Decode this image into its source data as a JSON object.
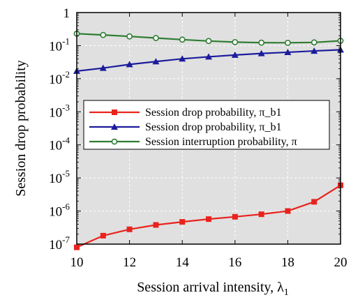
{
  "chart_data": {
    "type": "line",
    "xlabel": "Session arrival intensity, λ₁",
    "ylabel": "Session drop probability",
    "xlim": [
      10,
      20
    ],
    "ylim": [
      1e-07,
      1
    ],
    "yscale": "log",
    "grid": true,
    "legend_position": "center",
    "x_ticks": [
      10,
      12,
      14,
      16,
      18,
      20
    ],
    "y_ticks": [
      "10-7",
      "10-6",
      "10-5",
      "10-4",
      "10-3",
      "10-2",
      "10-1",
      "1"
    ],
    "x": [
      10,
      11,
      12,
      13,
      14,
      15,
      16,
      17,
      18,
      19,
      20
    ],
    "series": [
      {
        "name": "Session drop probability, π_b1",
        "color": "#e8231d",
        "marker": "square",
        "values": [
          8e-08,
          1.8e-07,
          2.8e-07,
          3.8e-07,
          4.7e-07,
          5.7e-07,
          6.7e-07,
          8e-07,
          1e-06,
          1.9e-06,
          6e-06
        ]
      },
      {
        "name": "Session drop probability, π_b1",
        "color": "#1c1c9c",
        "marker": "triangle",
        "values": [
          0.017,
          0.021,
          0.027,
          0.033,
          0.04,
          0.046,
          0.052,
          0.058,
          0.063,
          0.069,
          0.075
        ]
      },
      {
        "name": "Session interruption probability, π",
        "color": "#2e7d32",
        "marker": "circle-open",
        "values": [
          0.23,
          0.21,
          0.19,
          0.17,
          0.152,
          0.138,
          0.128,
          0.123,
          0.122,
          0.125,
          0.14
        ]
      }
    ]
  }
}
